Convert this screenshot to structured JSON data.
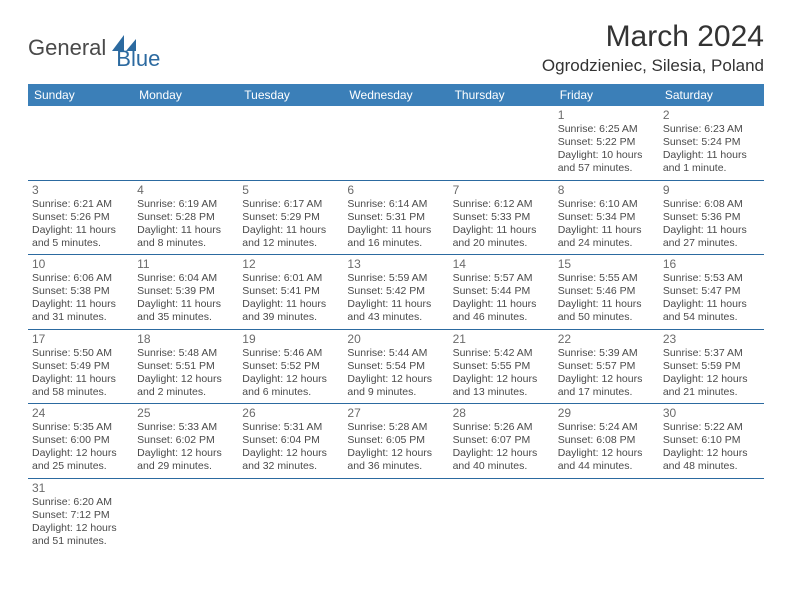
{
  "logo": {
    "text1": "General",
    "text2": "Blue"
  },
  "title": "March 2024",
  "location": "Ogrodzieniec, Silesia, Poland",
  "colors": {
    "header_bg": "#3b7fb8",
    "header_text": "#ffffff",
    "border": "#2c6aa0",
    "daynum": "#6b6b6b",
    "daytext": "#4a4a4a",
    "logo_accent": "#2c6aa0"
  },
  "day_headers": [
    "Sunday",
    "Monday",
    "Tuesday",
    "Wednesday",
    "Thursday",
    "Friday",
    "Saturday"
  ],
  "weeks": [
    [
      null,
      null,
      null,
      null,
      null,
      {
        "n": "1",
        "sr": "Sunrise: 6:25 AM",
        "ss": "Sunset: 5:22 PM",
        "d1": "Daylight: 10 hours",
        "d2": "and 57 minutes."
      },
      {
        "n": "2",
        "sr": "Sunrise: 6:23 AM",
        "ss": "Sunset: 5:24 PM",
        "d1": "Daylight: 11 hours",
        "d2": "and 1 minute."
      }
    ],
    [
      {
        "n": "3",
        "sr": "Sunrise: 6:21 AM",
        "ss": "Sunset: 5:26 PM",
        "d1": "Daylight: 11 hours",
        "d2": "and 5 minutes."
      },
      {
        "n": "4",
        "sr": "Sunrise: 6:19 AM",
        "ss": "Sunset: 5:28 PM",
        "d1": "Daylight: 11 hours",
        "d2": "and 8 minutes."
      },
      {
        "n": "5",
        "sr": "Sunrise: 6:17 AM",
        "ss": "Sunset: 5:29 PM",
        "d1": "Daylight: 11 hours",
        "d2": "and 12 minutes."
      },
      {
        "n": "6",
        "sr": "Sunrise: 6:14 AM",
        "ss": "Sunset: 5:31 PM",
        "d1": "Daylight: 11 hours",
        "d2": "and 16 minutes."
      },
      {
        "n": "7",
        "sr": "Sunrise: 6:12 AM",
        "ss": "Sunset: 5:33 PM",
        "d1": "Daylight: 11 hours",
        "d2": "and 20 minutes."
      },
      {
        "n": "8",
        "sr": "Sunrise: 6:10 AM",
        "ss": "Sunset: 5:34 PM",
        "d1": "Daylight: 11 hours",
        "d2": "and 24 minutes."
      },
      {
        "n": "9",
        "sr": "Sunrise: 6:08 AM",
        "ss": "Sunset: 5:36 PM",
        "d1": "Daylight: 11 hours",
        "d2": "and 27 minutes."
      }
    ],
    [
      {
        "n": "10",
        "sr": "Sunrise: 6:06 AM",
        "ss": "Sunset: 5:38 PM",
        "d1": "Daylight: 11 hours",
        "d2": "and 31 minutes."
      },
      {
        "n": "11",
        "sr": "Sunrise: 6:04 AM",
        "ss": "Sunset: 5:39 PM",
        "d1": "Daylight: 11 hours",
        "d2": "and 35 minutes."
      },
      {
        "n": "12",
        "sr": "Sunrise: 6:01 AM",
        "ss": "Sunset: 5:41 PM",
        "d1": "Daylight: 11 hours",
        "d2": "and 39 minutes."
      },
      {
        "n": "13",
        "sr": "Sunrise: 5:59 AM",
        "ss": "Sunset: 5:42 PM",
        "d1": "Daylight: 11 hours",
        "d2": "and 43 minutes."
      },
      {
        "n": "14",
        "sr": "Sunrise: 5:57 AM",
        "ss": "Sunset: 5:44 PM",
        "d1": "Daylight: 11 hours",
        "d2": "and 46 minutes."
      },
      {
        "n": "15",
        "sr": "Sunrise: 5:55 AM",
        "ss": "Sunset: 5:46 PM",
        "d1": "Daylight: 11 hours",
        "d2": "and 50 minutes."
      },
      {
        "n": "16",
        "sr": "Sunrise: 5:53 AM",
        "ss": "Sunset: 5:47 PM",
        "d1": "Daylight: 11 hours",
        "d2": "and 54 minutes."
      }
    ],
    [
      {
        "n": "17",
        "sr": "Sunrise: 5:50 AM",
        "ss": "Sunset: 5:49 PM",
        "d1": "Daylight: 11 hours",
        "d2": "and 58 minutes."
      },
      {
        "n": "18",
        "sr": "Sunrise: 5:48 AM",
        "ss": "Sunset: 5:51 PM",
        "d1": "Daylight: 12 hours",
        "d2": "and 2 minutes."
      },
      {
        "n": "19",
        "sr": "Sunrise: 5:46 AM",
        "ss": "Sunset: 5:52 PM",
        "d1": "Daylight: 12 hours",
        "d2": "and 6 minutes."
      },
      {
        "n": "20",
        "sr": "Sunrise: 5:44 AM",
        "ss": "Sunset: 5:54 PM",
        "d1": "Daylight: 12 hours",
        "d2": "and 9 minutes."
      },
      {
        "n": "21",
        "sr": "Sunrise: 5:42 AM",
        "ss": "Sunset: 5:55 PM",
        "d1": "Daylight: 12 hours",
        "d2": "and 13 minutes."
      },
      {
        "n": "22",
        "sr": "Sunrise: 5:39 AM",
        "ss": "Sunset: 5:57 PM",
        "d1": "Daylight: 12 hours",
        "d2": "and 17 minutes."
      },
      {
        "n": "23",
        "sr": "Sunrise: 5:37 AM",
        "ss": "Sunset: 5:59 PM",
        "d1": "Daylight: 12 hours",
        "d2": "and 21 minutes."
      }
    ],
    [
      {
        "n": "24",
        "sr": "Sunrise: 5:35 AM",
        "ss": "Sunset: 6:00 PM",
        "d1": "Daylight: 12 hours",
        "d2": "and 25 minutes."
      },
      {
        "n": "25",
        "sr": "Sunrise: 5:33 AM",
        "ss": "Sunset: 6:02 PM",
        "d1": "Daylight: 12 hours",
        "d2": "and 29 minutes."
      },
      {
        "n": "26",
        "sr": "Sunrise: 5:31 AM",
        "ss": "Sunset: 6:04 PM",
        "d1": "Daylight: 12 hours",
        "d2": "and 32 minutes."
      },
      {
        "n": "27",
        "sr": "Sunrise: 5:28 AM",
        "ss": "Sunset: 6:05 PM",
        "d1": "Daylight: 12 hours",
        "d2": "and 36 minutes."
      },
      {
        "n": "28",
        "sr": "Sunrise: 5:26 AM",
        "ss": "Sunset: 6:07 PM",
        "d1": "Daylight: 12 hours",
        "d2": "and 40 minutes."
      },
      {
        "n": "29",
        "sr": "Sunrise: 5:24 AM",
        "ss": "Sunset: 6:08 PM",
        "d1": "Daylight: 12 hours",
        "d2": "and 44 minutes."
      },
      {
        "n": "30",
        "sr": "Sunrise: 5:22 AM",
        "ss": "Sunset: 6:10 PM",
        "d1": "Daylight: 12 hours",
        "d2": "and 48 minutes."
      }
    ],
    [
      {
        "n": "31",
        "sr": "Sunrise: 6:20 AM",
        "ss": "Sunset: 7:12 PM",
        "d1": "Daylight: 12 hours",
        "d2": "and 51 minutes."
      },
      null,
      null,
      null,
      null,
      null,
      null
    ]
  ]
}
